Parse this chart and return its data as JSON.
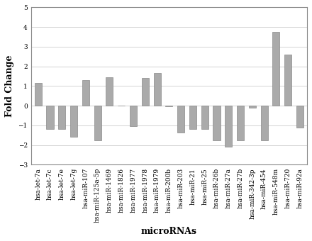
{
  "categories": [
    "hsa-let-7a",
    "hsa-let-7c",
    "hsa-let-7e",
    "hsa-let-7g",
    "hsa-miR-107",
    "hsa-miR-125a-5p",
    "hsa-miR-1469",
    "hsa-miR-1826",
    "hsa-miR-1977",
    "hsa-miR-1978",
    "hsa-miR-1979",
    "hsa-miR-200b",
    "hsa-miR-203",
    "hsa-miR-21",
    "hsa-miR-25",
    "hsa-miR-26b",
    "hsa-miR-27a",
    "hsa-miR-27b",
    "hsa-miR-342-3p",
    "hsa-miR-454",
    "hsa-miR-548m",
    "hsa-miR-720",
    "hsa-miR-92a"
  ],
  "values": [
    1.15,
    -1.2,
    -1.2,
    -1.6,
    1.3,
    -1.75,
    1.45,
    0.0,
    -1.05,
    1.4,
    1.65,
    -0.05,
    -1.35,
    -1.2,
    -1.2,
    -1.75,
    -2.1,
    -1.75,
    -0.1,
    -1.75,
    3.75,
    2.6,
    -1.1
  ],
  "bar_color": "#aaaaaa",
  "bar_edgecolor": "#888888",
  "ylabel": "Fold Change",
  "xlabel": "microRNAs",
  "ylim": [
    -3,
    5
  ],
  "yticks": [
    -3,
    -2,
    -1,
    0,
    1,
    2,
    3,
    4,
    5
  ],
  "grid_color": "#cccccc",
  "ylabel_fontsize": 9,
  "xlabel_fontsize": 9,
  "tick_fontsize": 6.5,
  "background_color": "#ffffff",
  "font_family": "serif"
}
